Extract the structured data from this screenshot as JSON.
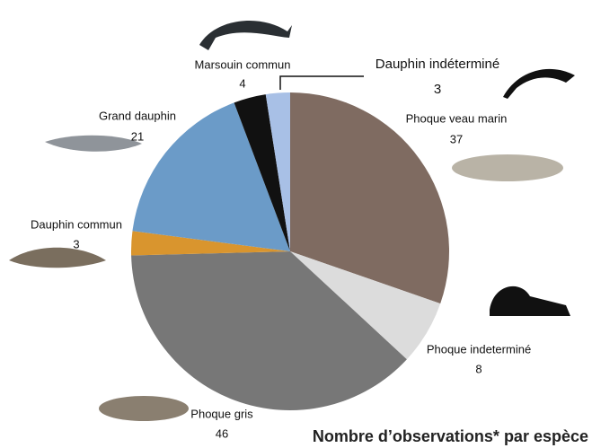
{
  "chart_data": {
    "type": "pie",
    "title": "Nombre d’observations* par espèce",
    "categories": [
      "Phoque veau marin",
      "Phoque indeterminé",
      "Phoque gris",
      "Dauphin commun",
      "Grand dauphin",
      "Marsouin commun",
      "Dauphin indéterminé"
    ],
    "values": [
      37,
      8,
      46,
      3,
      21,
      4,
      3
    ],
    "colors": [
      "#7f6b61",
      "#dcdcdc",
      "#777777",
      "#d9952e",
      "#6b9bc8",
      "#111111",
      "#a8c0e6"
    ]
  }
}
